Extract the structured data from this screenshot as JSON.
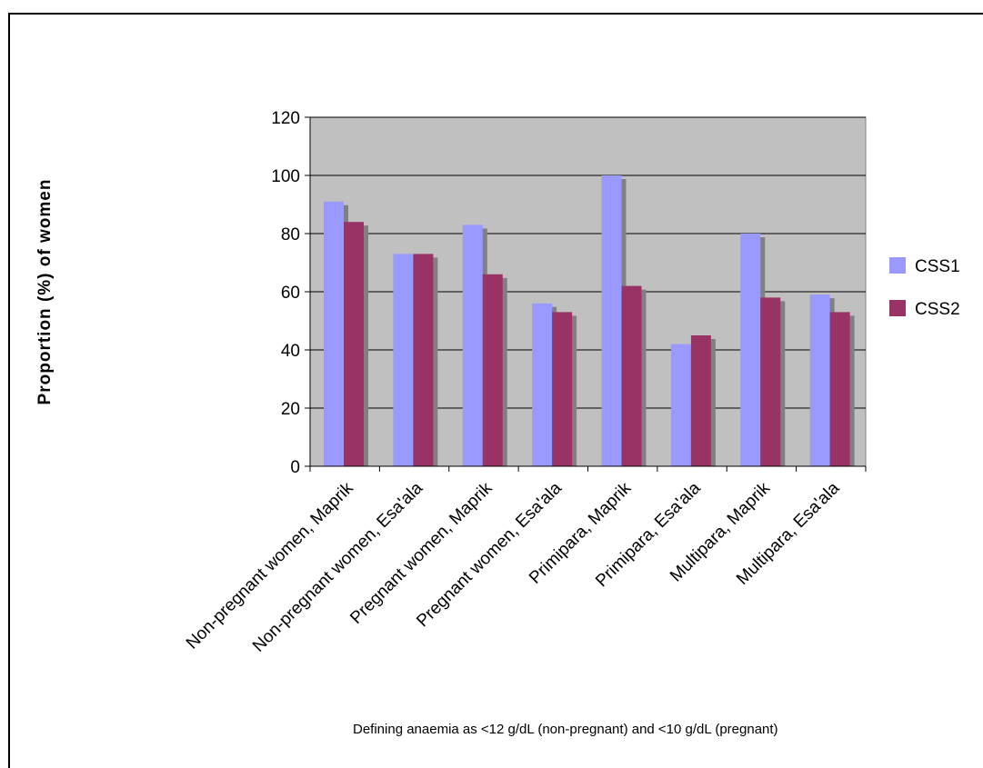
{
  "chart_data": {
    "type": "bar",
    "ylabel": "Proportion (%) of women",
    "xlabel": "",
    "ylim": [
      0,
      120
    ],
    "yticks": [
      0,
      20,
      40,
      60,
      80,
      100,
      120
    ],
    "grid": true,
    "legend_position": "right",
    "categories": [
      "Non-pregnant women, Maprik",
      "Non-pregnant women, Esa'ala",
      "Pregnant women, Maprik",
      "Pregnant women, Esa'ala",
      "Primipara, Maprik",
      "Primipara, Esa'ala",
      "Multipara, Maprik",
      "Multipara, Esa'ala"
    ],
    "series": [
      {
        "name": "CSS1",
        "color": "#9999FF",
        "values": [
          91,
          73,
          83,
          56,
          100,
          42,
          80,
          59
        ]
      },
      {
        "name": "CSS2",
        "color": "#993366",
        "values": [
          84,
          73,
          66,
          53,
          62,
          45,
          58,
          53
        ]
      }
    ],
    "annotation": "Defining anaemia as <12 g/dL (non-pregnant) and <10 g/dL (pregnant)",
    "plot_background": "#C0C0C0",
    "shadow_color": "#808080"
  }
}
